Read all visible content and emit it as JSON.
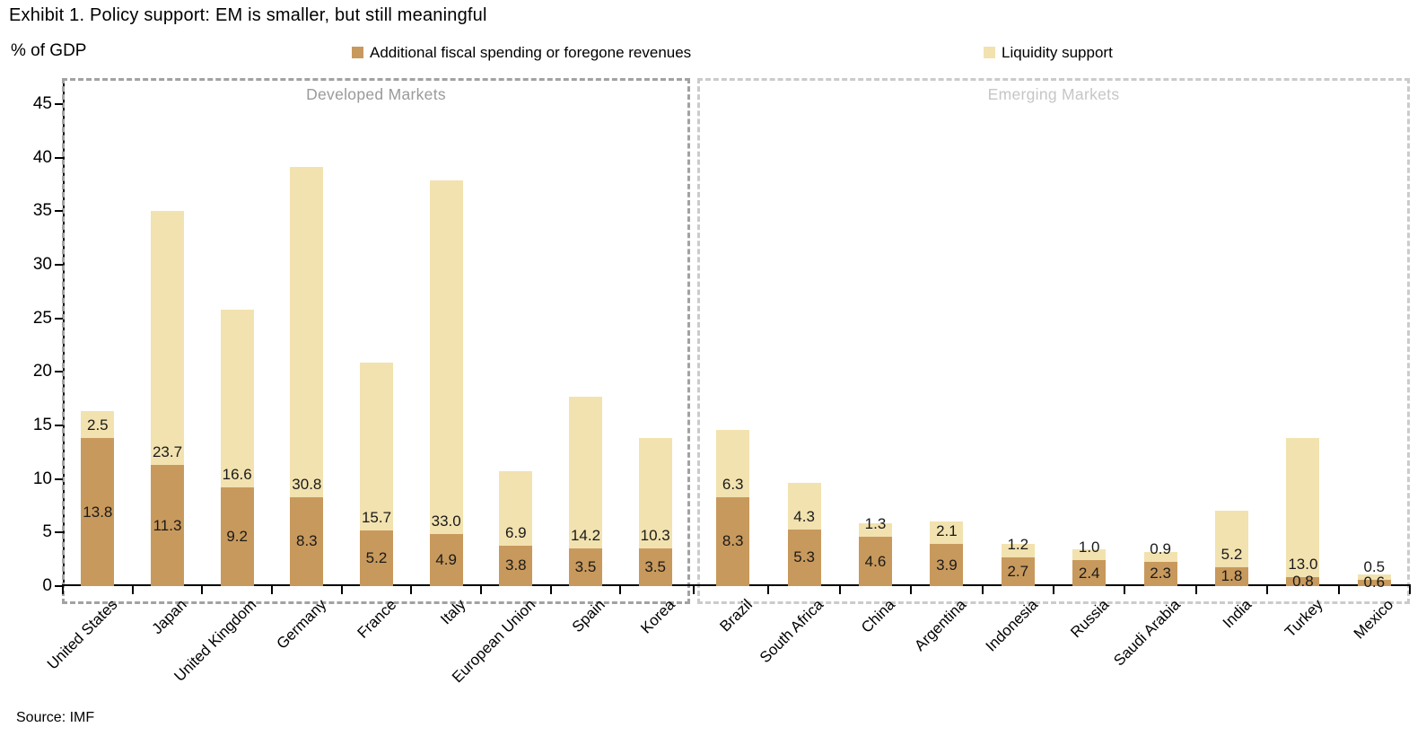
{
  "title": "Exhibit 1. Policy support: EM is smaller, but still meaningful",
  "y_axis_title": "% of GDP",
  "source": "Source: IMF",
  "chart_data": {
    "type": "bar",
    "stacked": true,
    "title": "Exhibit 1. Policy support: EM is smaller, but still meaningful",
    "xlabel": "",
    "ylabel": "% of GDP",
    "ylim": [
      0,
      45
    ],
    "yticks": [
      0,
      5,
      10,
      15,
      20,
      25,
      30,
      35,
      40,
      45
    ],
    "grid": false,
    "legend_position": "top",
    "value_label_decimals": 1,
    "axis_color": "#000000",
    "value_label_color": "#1A1A1A",
    "series": [
      {
        "key": "fiscal",
        "name": "Additional fiscal spending or foregone revenues",
        "color": "#C8995C"
      },
      {
        "key": "liquidity",
        "name": "Liquidity support",
        "color": "#F2E2AF"
      }
    ],
    "groups": [
      {
        "label": "Developed Markets",
        "box_border_color": "#A2A2A2",
        "label_color": "#9A9A9A",
        "categories": [
          "United States",
          "Japan",
          "United Kingdom",
          "Germany",
          "France",
          "Italy",
          "European Union",
          "Spain",
          "Korea"
        ],
        "values": {
          "fiscal": [
            13.8,
            11.3,
            9.2,
            8.3,
            5.2,
            4.9,
            3.8,
            3.5,
            3.5
          ],
          "liquidity": [
            2.5,
            23.7,
            16.6,
            30.8,
            15.7,
            33.0,
            6.9,
            14.2,
            10.3
          ]
        }
      },
      {
        "label": "Emerging Markets",
        "box_border_color": "#CBCBCB",
        "label_color": "#C6C6C6",
        "categories": [
          "Brazil",
          "South Africa",
          "China",
          "Argentina",
          "Indonesia",
          "Russia",
          "Saudi Arabia",
          "India",
          "Turkey",
          "Mexico"
        ],
        "values": {
          "fiscal": [
            8.3,
            5.3,
            4.6,
            3.9,
            2.7,
            2.4,
            2.3,
            1.8,
            0.8,
            0.6
          ],
          "liquidity": [
            6.3,
            4.3,
            1.3,
            2.1,
            1.2,
            1.0,
            0.9,
            5.2,
            13.0,
            0.5
          ]
        }
      }
    ]
  }
}
